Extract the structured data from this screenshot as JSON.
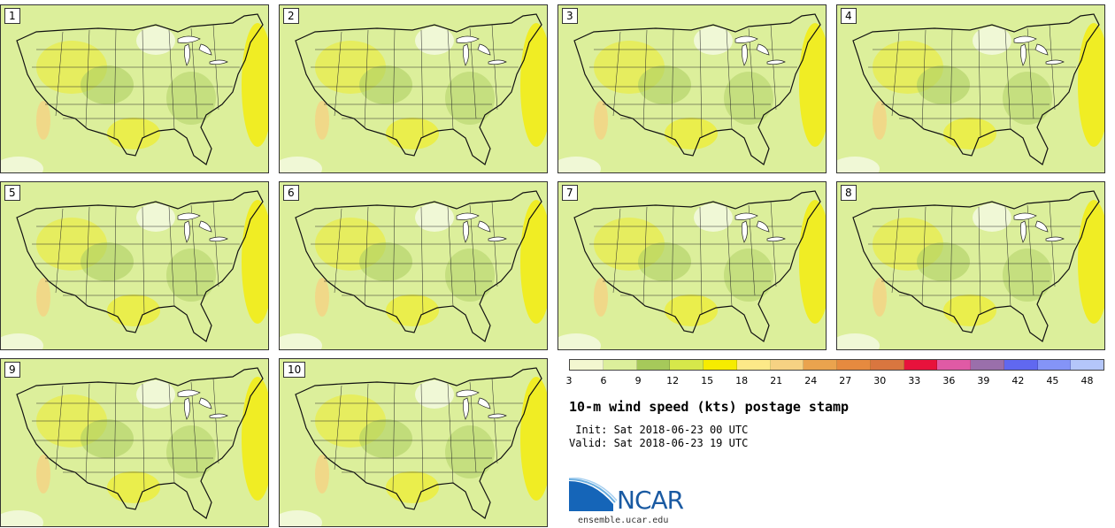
{
  "panels": [
    {
      "label": "1"
    },
    {
      "label": "2"
    },
    {
      "label": "3"
    },
    {
      "label": "4"
    },
    {
      "label": "5"
    },
    {
      "label": "6"
    },
    {
      "label": "7"
    },
    {
      "label": "8"
    },
    {
      "label": "9"
    },
    {
      "label": "10"
    }
  ],
  "legend": {
    "colors": [
      "#f3f7d0",
      "#dcef9b",
      "#a6c95a",
      "#d6e84a",
      "#f6ec00",
      "#fde988",
      "#f6d283",
      "#eaa34e",
      "#e68a3f",
      "#d9763f",
      "#e8123c",
      "#e05aa5",
      "#9a6fab",
      "#6068f0",
      "#8494f7",
      "#b4c6fa"
    ],
    "tick_labels": [
      "3",
      "6",
      "9",
      "12",
      "15",
      "18",
      "21",
      "24",
      "27",
      "30",
      "33",
      "36",
      "39",
      "42",
      "45",
      "48"
    ]
  },
  "info": {
    "title": "10-m wind speed (kts) postage stamp",
    "init": " Init: Sat 2018-06-23 00 UTC",
    "valid": "Valid: Sat 2018-06-23 19 UTC"
  },
  "logo": {
    "text": "NCAR",
    "url": "ensemble.ucar.edu",
    "colors": {
      "blue": "#1a5aa2",
      "light": "#4a90d0"
    }
  }
}
